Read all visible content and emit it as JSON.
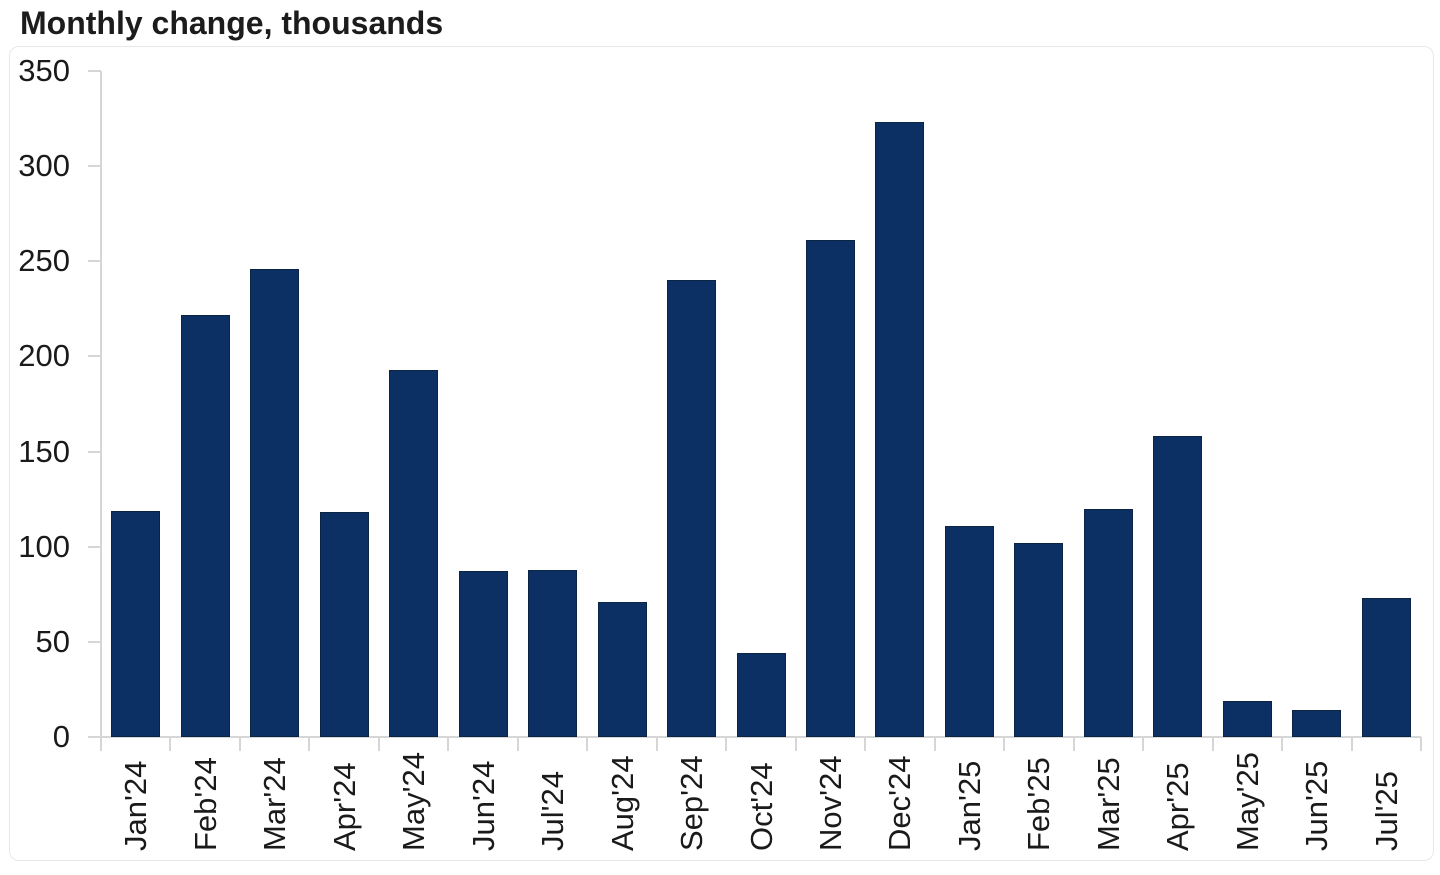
{
  "chart_data": {
    "type": "bar",
    "title": "Monthly change, thousands",
    "categories": [
      "Jan'24",
      "Feb'24",
      "Mar'24",
      "Apr'24",
      "May'24",
      "Jun'24",
      "Jul'24",
      "Aug'24",
      "Sep'24",
      "Oct'24",
      "Nov'24",
      "Dec'24",
      "Jan'25",
      "Feb'25",
      "Mar'25",
      "Apr'25",
      "May'25",
      "Jun'25",
      "Jul'25"
    ],
    "values": [
      119,
      222,
      246,
      118,
      193,
      87,
      88,
      71,
      240,
      44,
      261,
      323,
      111,
      102,
      120,
      158,
      19,
      14,
      73
    ],
    "xlabel": "",
    "ylabel": "",
    "ylim": [
      0,
      350
    ],
    "yticks": [
      0,
      50,
      100,
      150,
      200,
      250,
      300,
      350
    ],
    "grid": false,
    "legend_position": "none",
    "bar_color": "#0d3064",
    "bar_border_color": "#0a2444",
    "axis_color": "#d6d6d6",
    "label_color": "#1a1a1a",
    "title_color": "#1c1c1c",
    "frame_color": "#e7e7e7"
  }
}
